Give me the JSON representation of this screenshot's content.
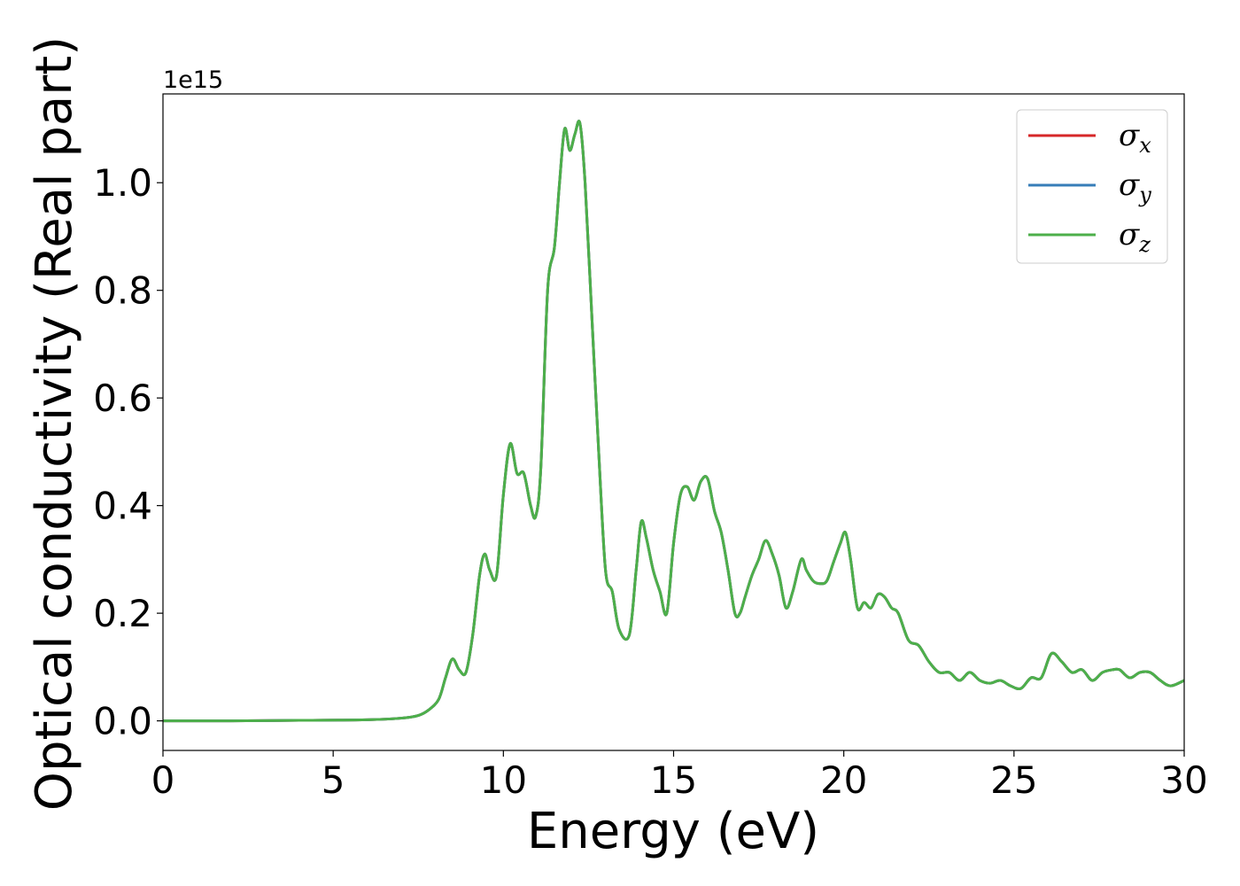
{
  "chart_data": {
    "type": "line",
    "title": "",
    "xlabel": "Energy (eV)",
    "ylabel": "Optical conductivity (Real part)",
    "y_offset_label": "1e15",
    "y_scale": 1000000000000000.0,
    "xlim": [
      0,
      30
    ],
    "ylim": [
      -0.055,
      1.165
    ],
    "x_ticks": [
      0,
      5,
      10,
      15,
      20,
      25,
      30
    ],
    "x_tick_labels": [
      "0",
      "5",
      "10",
      "15",
      "20",
      "25",
      "30"
    ],
    "y_ticks": [
      0.0,
      0.2,
      0.4,
      0.6,
      0.8,
      1.0
    ],
    "y_tick_labels": [
      "0.0",
      "0.2",
      "0.4",
      "0.6",
      "0.8",
      "1.0"
    ],
    "grid": false,
    "legend_position": "top-right",
    "x": [
      0,
      2,
      4,
      6,
      7,
      7.5,
      7.8,
      8.1,
      8.3,
      8.5,
      8.7,
      8.9,
      9.1,
      9.3,
      9.45,
      9.6,
      9.8,
      10.0,
      10.2,
      10.4,
      10.6,
      10.8,
      10.95,
      11.1,
      11.3,
      11.5,
      11.65,
      11.8,
      11.95,
      12.1,
      12.25,
      12.4,
      12.6,
      12.8,
      13.0,
      13.2,
      13.4,
      13.7,
      13.9,
      14.05,
      14.2,
      14.4,
      14.6,
      14.8,
      15.0,
      15.2,
      15.4,
      15.6,
      15.8,
      16.0,
      16.2,
      16.4,
      16.6,
      16.8,
      16.95,
      17.1,
      17.3,
      17.5,
      17.7,
      17.9,
      18.1,
      18.3,
      18.5,
      18.75,
      18.9,
      19.1,
      19.3,
      19.5,
      19.7,
      19.9,
      20.05,
      20.2,
      20.4,
      20.6,
      20.8,
      21.0,
      21.2,
      21.4,
      21.6,
      21.9,
      22.2,
      22.5,
      22.8,
      23.1,
      23.4,
      23.7,
      24.0,
      24.3,
      24.6,
      24.9,
      25.2,
      25.5,
      25.8,
      26.1,
      26.4,
      26.7,
      27.0,
      27.3,
      27.6,
      27.9,
      28.1,
      28.4,
      28.7,
      29.0,
      29.3,
      29.6,
      30.0
    ],
    "series": [
      {
        "name": "σx",
        "color": "#d62728",
        "values": [
          0.0,
          0.0,
          0.001,
          0.002,
          0.005,
          0.01,
          0.02,
          0.04,
          0.08,
          0.115,
          0.095,
          0.09,
          0.16,
          0.27,
          0.31,
          0.28,
          0.27,
          0.42,
          0.515,
          0.46,
          0.46,
          0.4,
          0.38,
          0.47,
          0.8,
          0.88,
          1.0,
          1.1,
          1.06,
          1.09,
          1.11,
          1.0,
          0.75,
          0.5,
          0.28,
          0.24,
          0.17,
          0.16,
          0.28,
          0.37,
          0.34,
          0.28,
          0.24,
          0.2,
          0.33,
          0.42,
          0.435,
          0.41,
          0.445,
          0.45,
          0.39,
          0.35,
          0.28,
          0.2,
          0.2,
          0.23,
          0.27,
          0.3,
          0.335,
          0.31,
          0.27,
          0.21,
          0.24,
          0.3,
          0.28,
          0.26,
          0.255,
          0.26,
          0.295,
          0.33,
          0.35,
          0.3,
          0.21,
          0.22,
          0.21,
          0.235,
          0.23,
          0.21,
          0.2,
          0.15,
          0.14,
          0.11,
          0.09,
          0.09,
          0.075,
          0.09,
          0.075,
          0.07,
          0.075,
          0.065,
          0.06,
          0.08,
          0.08,
          0.125,
          0.11,
          0.09,
          0.095,
          0.075,
          0.09,
          0.095,
          0.095,
          0.08,
          0.09,
          0.09,
          0.075,
          0.065,
          0.075
        ]
      },
      {
        "name": "σy",
        "color": "#377eb8",
        "values": [
          0.0,
          0.0,
          0.001,
          0.002,
          0.005,
          0.01,
          0.02,
          0.04,
          0.08,
          0.115,
          0.095,
          0.09,
          0.16,
          0.27,
          0.31,
          0.28,
          0.27,
          0.42,
          0.515,
          0.46,
          0.46,
          0.4,
          0.38,
          0.47,
          0.8,
          0.88,
          1.0,
          1.1,
          1.06,
          1.09,
          1.11,
          1.0,
          0.75,
          0.5,
          0.28,
          0.24,
          0.17,
          0.16,
          0.28,
          0.37,
          0.34,
          0.28,
          0.24,
          0.2,
          0.33,
          0.42,
          0.435,
          0.41,
          0.445,
          0.45,
          0.39,
          0.35,
          0.28,
          0.2,
          0.2,
          0.23,
          0.27,
          0.3,
          0.335,
          0.31,
          0.27,
          0.21,
          0.24,
          0.3,
          0.28,
          0.26,
          0.255,
          0.26,
          0.295,
          0.33,
          0.35,
          0.3,
          0.21,
          0.22,
          0.21,
          0.235,
          0.23,
          0.21,
          0.2,
          0.15,
          0.14,
          0.11,
          0.09,
          0.09,
          0.075,
          0.09,
          0.075,
          0.07,
          0.075,
          0.065,
          0.06,
          0.08,
          0.08,
          0.125,
          0.11,
          0.09,
          0.095,
          0.075,
          0.09,
          0.095,
          0.095,
          0.08,
          0.09,
          0.09,
          0.075,
          0.065,
          0.075
        ]
      },
      {
        "name": "σz",
        "color": "#4daf4a",
        "values": [
          0.0,
          0.0,
          0.001,
          0.002,
          0.005,
          0.01,
          0.02,
          0.04,
          0.08,
          0.115,
          0.095,
          0.09,
          0.16,
          0.27,
          0.31,
          0.28,
          0.27,
          0.42,
          0.515,
          0.46,
          0.46,
          0.4,
          0.38,
          0.47,
          0.8,
          0.88,
          1.0,
          1.1,
          1.06,
          1.09,
          1.11,
          1.0,
          0.75,
          0.5,
          0.28,
          0.24,
          0.17,
          0.16,
          0.28,
          0.37,
          0.34,
          0.28,
          0.24,
          0.2,
          0.33,
          0.42,
          0.435,
          0.41,
          0.445,
          0.45,
          0.39,
          0.35,
          0.28,
          0.2,
          0.2,
          0.23,
          0.27,
          0.3,
          0.335,
          0.31,
          0.27,
          0.21,
          0.24,
          0.3,
          0.28,
          0.26,
          0.255,
          0.26,
          0.295,
          0.33,
          0.35,
          0.3,
          0.21,
          0.22,
          0.21,
          0.235,
          0.23,
          0.21,
          0.2,
          0.15,
          0.14,
          0.11,
          0.09,
          0.09,
          0.075,
          0.09,
          0.075,
          0.07,
          0.075,
          0.065,
          0.06,
          0.08,
          0.08,
          0.125,
          0.11,
          0.09,
          0.095,
          0.075,
          0.09,
          0.095,
          0.095,
          0.08,
          0.09,
          0.09,
          0.075,
          0.065,
          0.075
        ]
      }
    ],
    "legend": [
      {
        "symbol": "σ",
        "sub": "x",
        "color": "#d62728"
      },
      {
        "symbol": "σ",
        "sub": "y",
        "color": "#377eb8"
      },
      {
        "symbol": "σ",
        "sub": "z",
        "color": "#4daf4a"
      }
    ]
  }
}
